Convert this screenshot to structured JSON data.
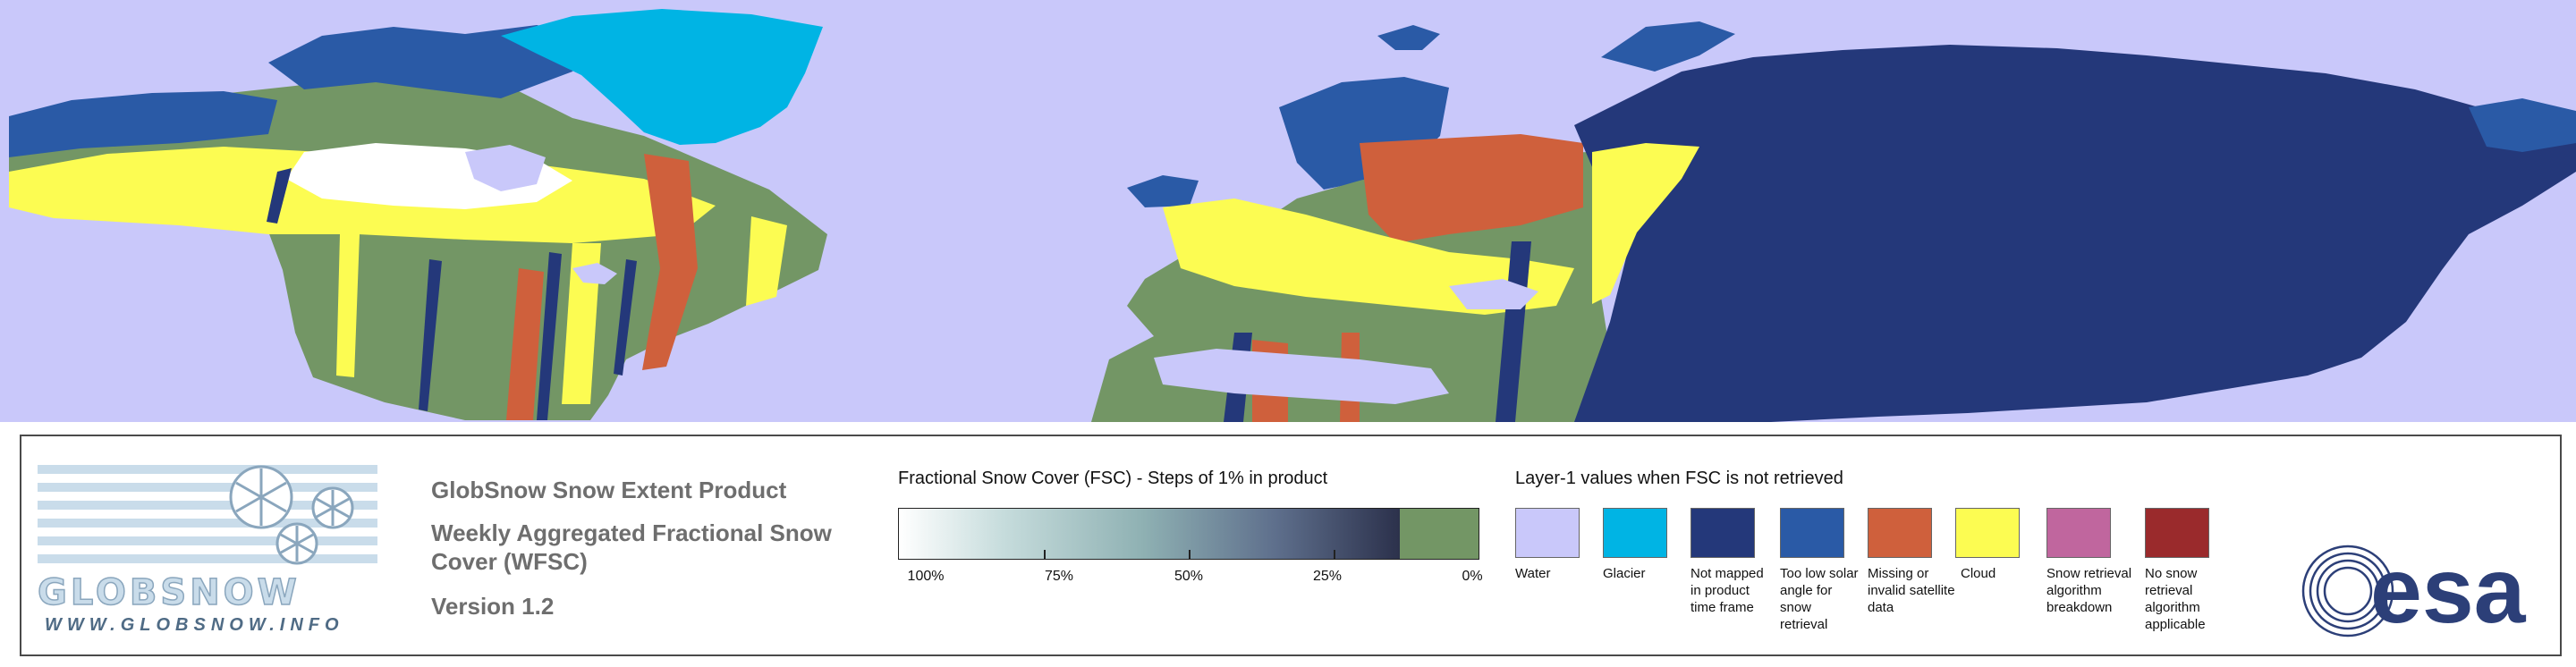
{
  "map": {
    "colors": {
      "water": "#c9c8fa",
      "glacier": "#00b4e4",
      "not_mapped": "#24387a",
      "low_sun": "#2a5aa6",
      "missing": "#cf603c",
      "cloud": "#fcfc52",
      "no_snow": "#739665",
      "snow": "#ffffff"
    }
  },
  "legend": {
    "logo": {
      "wordmark_a": "GLOB",
      "wordmark_b": "SNOW",
      "url": "WWW.GLOBSNOW.INFO",
      "icon": "snowflake-icon"
    },
    "product": {
      "line1": "GlobSnow Snow Extent Product",
      "line2a": "Weekly Aggregated Fractional Snow",
      "line2b": "Cover (WFSC)",
      "version": "Version 1.2"
    },
    "fsc": {
      "title": "Fractional Snow Cover (FSC) - Steps of 1% in product",
      "labels": [
        "100%",
        "75%",
        "50%",
        "25%",
        "0%"
      ],
      "gradient_start": "#ffffff",
      "gradient_end": "#111420",
      "zero_color": "#739665"
    },
    "layer1": {
      "title": "Layer-1 values when FSC is not retrieved",
      "items": [
        {
          "label": "Water",
          "color": "#c9c8fa"
        },
        {
          "label": "Glacier",
          "color": "#00b4e4"
        },
        {
          "label": "Not mapped in product time frame",
          "color": "#24387a"
        },
        {
          "label": "Too low solar angle for snow retrieval",
          "color": "#2a5aa6"
        },
        {
          "label": "Missing or invalid satellite data",
          "color": "#cf603c"
        },
        {
          "label": "Cloud",
          "color": "#fcfc52"
        },
        {
          "label": "Snow retrieval algorithm breakdown",
          "color": "#c0669e"
        },
        {
          "label": "No snow retrieval algorithm applicable",
          "color": "#9a2a2c"
        }
      ]
    },
    "esa_logo": {
      "text": "esa",
      "color": "#2c3f78"
    }
  }
}
